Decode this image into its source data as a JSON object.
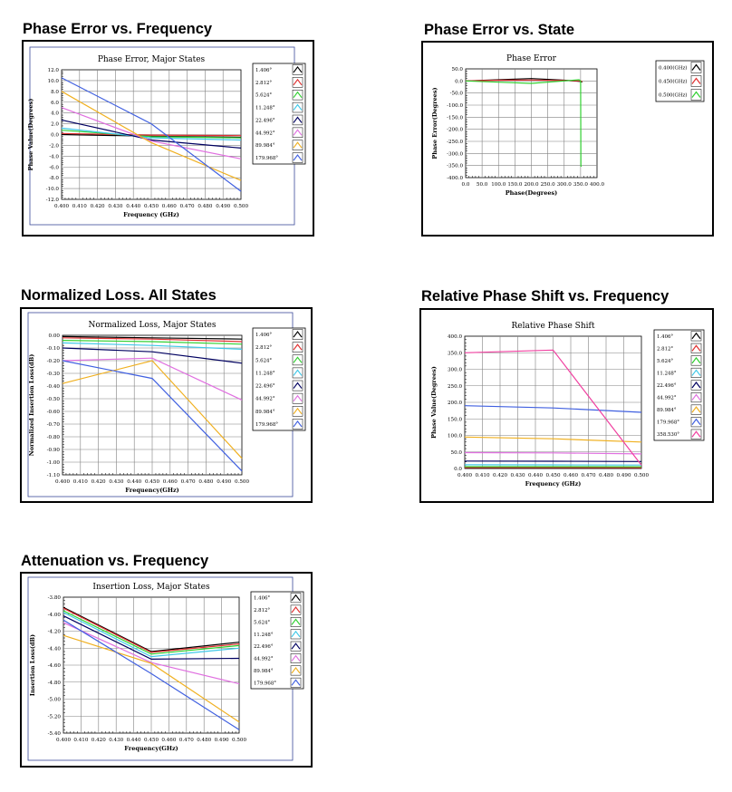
{
  "headings": {
    "h1": "Phase Error vs. Frequency",
    "h2": "Phase Error vs. State",
    "h3": "Normalized Loss. All States",
    "h4": "Relative Phase Shift vs. Frequency",
    "h5": "Attenuation vs.  Frequency"
  },
  "colors": {
    "s1": "#000000",
    "s2": "#e03030",
    "s3": "#30d030",
    "s4": "#40c8e8",
    "s5": "#000060",
    "s6": "#e070e0",
    "s7": "#f0b020",
    "s8": "#4060e0",
    "s9": "#f040a0",
    "grid": "#808080"
  },
  "chart_data": [
    {
      "type": "line",
      "title": "Phase Error, Major States",
      "xlabel": "Frequency (GHz)",
      "ylabel": "Phase Value(Degrees)",
      "xlim": [
        0.4,
        0.5
      ],
      "ylim": [
        -12,
        12
      ],
      "x_ticks": [
        "0.400",
        "0.410",
        "0.420",
        "0.430",
        "0.440",
        "0.450",
        "0.460",
        "0.470",
        "0.480",
        "0.490",
        "0.500"
      ],
      "y_ticks": [
        "12.0",
        "10.0",
        "8.0",
        "6.0",
        "4.0",
        "2.0",
        "0.0",
        "-2.0",
        "-4.0",
        "-6.0",
        "-8.0",
        "-10.0",
        "-12.0"
      ],
      "x": [
        0.4,
        0.45,
        0.5
      ],
      "series": [
        {
          "name": "1.406°",
          "values": [
            0.0,
            -0.3,
            -0.5
          ]
        },
        {
          "name": "2.812°",
          "values": [
            0.2,
            -0.1,
            -0.2
          ]
        },
        {
          "name": "5.624°",
          "values": [
            0.8,
            -0.4,
            -0.6
          ]
        },
        {
          "name": "11.248°",
          "values": [
            1.2,
            -0.6,
            -1.0
          ]
        },
        {
          "name": "22.496°",
          "values": [
            2.7,
            -1.0,
            -2.5
          ]
        },
        {
          "name": "44.992°",
          "values": [
            5.0,
            -1.2,
            -4.5
          ]
        },
        {
          "name": "89.984°",
          "values": [
            8.0,
            -1.5,
            -8.5
          ]
        },
        {
          "name": "179.968°",
          "values": [
            10.5,
            2.0,
            -10.5
          ]
        }
      ]
    },
    {
      "type": "line",
      "title": "Phase Error",
      "xlabel": "Phase(Degrees)",
      "ylabel": "Phase Error(Degrees)",
      "xlim": [
        0,
        400
      ],
      "ylim": [
        -400,
        50
      ],
      "x_ticks": [
        "0.0",
        "50.0",
        "100.0",
        "150.0",
        "200.0",
        "250.0",
        "300.0",
        "350.0",
        "400.0"
      ],
      "y_ticks": [
        "50.0",
        "0.0",
        "-50.0",
        "-100.0",
        "-150.0",
        "-200.0",
        "-250.0",
        "-300.0",
        "-350.0",
        "-400.0"
      ],
      "series": [
        {
          "name": "0.400(GHz)",
          "x": [
            0,
            100,
            200,
            300,
            350,
            355
          ],
          "values": [
            0,
            5,
            10,
            3,
            -2,
            -5
          ]
        },
        {
          "name": "0.450(GHz)",
          "x": [
            0,
            100,
            200,
            300,
            350,
            355
          ],
          "values": [
            0,
            3,
            4,
            2,
            0,
            -2
          ]
        },
        {
          "name": "0.500(GHz)",
          "x": [
            0,
            100,
            200,
            300,
            345,
            350,
            351,
            352
          ],
          "values": [
            0,
            -5,
            -10,
            0,
            5,
            0,
            -350,
            -355
          ]
        }
      ]
    },
    {
      "type": "line",
      "title": "Normalized Loss, Major States",
      "xlabel": "Frequency(GHz)",
      "ylabel": "Normalized Insertion Loss(dB)",
      "xlim": [
        0.4,
        0.5
      ],
      "ylim": [
        -1.1,
        0.0
      ],
      "x_ticks": [
        "0.400",
        "0.410",
        "0.420",
        "0.430",
        "0.440",
        "0.450",
        "0.460",
        "0.470",
        "0.480",
        "0.490",
        "0.500"
      ],
      "y_ticks": [
        "0.00",
        "-0.10",
        "-0.20",
        "-0.30",
        "-0.40",
        "-0.50",
        "-0.60",
        "-0.70",
        "-0.80",
        "-0.90",
        "-1.00",
        "-1.10"
      ],
      "x": [
        0.4,
        0.45,
        0.5
      ],
      "series": [
        {
          "name": "1.406°",
          "values": [
            -0.01,
            -0.02,
            -0.03
          ]
        },
        {
          "name": "2.812°",
          "values": [
            -0.02,
            -0.03,
            -0.05
          ]
        },
        {
          "name": "5.624°",
          "values": [
            -0.04,
            -0.05,
            -0.07
          ]
        },
        {
          "name": "11.248°",
          "values": [
            -0.06,
            -0.08,
            -0.11
          ]
        },
        {
          "name": "22.496°",
          "values": [
            -0.1,
            -0.13,
            -0.22
          ]
        },
        {
          "name": "44.992°",
          "values": [
            -0.2,
            -0.18,
            -0.51
          ]
        },
        {
          "name": "89.984°",
          "values": [
            -0.38,
            -0.2,
            -0.97
          ]
        },
        {
          "name": "179.968°",
          "values": [
            -0.2,
            -0.34,
            -1.07
          ]
        }
      ]
    },
    {
      "type": "line",
      "title": "Relative Phase Shift",
      "xlabel": "Frequency (GHz)",
      "ylabel": "Phase Value(Degrees)",
      "xlim": [
        0.4,
        0.5
      ],
      "ylim": [
        0,
        400
      ],
      "x_ticks": [
        "0.400",
        "0.410",
        "0.420",
        "0.430",
        "0.440",
        "0.450",
        "0.460",
        "0.470",
        "0.480",
        "0.490",
        "0.500"
      ],
      "y_ticks": [
        "400.0",
        "350.0",
        "300.0",
        "250.0",
        "200.0",
        "150.0",
        "100.0",
        "50.0",
        "0.0"
      ],
      "x": [
        0.4,
        0.45,
        0.5
      ],
      "series": [
        {
          "name": "1.406°",
          "values": [
            1.4,
            1.4,
            1.3
          ]
        },
        {
          "name": "2.812°",
          "values": [
            2.8,
            2.7,
            2.6
          ]
        },
        {
          "name": "5.624°",
          "values": [
            5.6,
            5.4,
            5.2
          ]
        },
        {
          "name": "11.248°",
          "values": [
            11.2,
            11.0,
            10.5
          ]
        },
        {
          "name": "22.496°",
          "values": [
            22.5,
            22.0,
            21.0
          ]
        },
        {
          "name": "44.992°",
          "values": [
            48.0,
            47.0,
            44.0
          ]
        },
        {
          "name": "89.984°",
          "values": [
            95.0,
            90.0,
            80.0
          ]
        },
        {
          "name": "179.968°",
          "values": [
            190.0,
            183.0,
            170.0
          ]
        },
        {
          "name": "358.530°",
          "values": [
            350.0,
            358.0,
            10.0
          ]
        }
      ]
    },
    {
      "type": "line",
      "title": "Insertion Loss, Major States",
      "xlabel": "Frequency(GHz)",
      "ylabel": "Insertion Loss(dB)",
      "xlim": [
        0.4,
        0.5
      ],
      "ylim": [
        -5.4,
        -3.8
      ],
      "x_ticks": [
        "0.400",
        "0.410",
        "0.420",
        "0.430",
        "0.440",
        "0.450",
        "0.460",
        "0.470",
        "0.480",
        "0.490",
        "0.500"
      ],
      "y_ticks": [
        "-3.80",
        "-4.00",
        "-4.20",
        "-4.40",
        "-4.60",
        "-4.80",
        "-5.00",
        "-5.20",
        "-5.40"
      ],
      "x": [
        0.4,
        0.45,
        0.5
      ],
      "series": [
        {
          "name": "1.406°",
          "values": [
            -3.92,
            -4.44,
            -4.33
          ]
        },
        {
          "name": "2.812°",
          "values": [
            -3.93,
            -4.45,
            -4.35
          ]
        },
        {
          "name": "5.624°",
          "values": [
            -3.96,
            -4.47,
            -4.37
          ]
        },
        {
          "name": "11.248°",
          "values": [
            -3.98,
            -4.5,
            -4.4
          ]
        },
        {
          "name": "22.496°",
          "values": [
            -4.02,
            -4.53,
            -4.52
          ]
        },
        {
          "name": "44.992°",
          "values": [
            -4.1,
            -4.57,
            -4.82
          ]
        },
        {
          "name": "89.984°",
          "values": [
            -4.25,
            -4.58,
            -5.27
          ]
        },
        {
          "name": "179.968°",
          "values": [
            -4.07,
            -4.7,
            -5.36
          ]
        }
      ]
    }
  ]
}
